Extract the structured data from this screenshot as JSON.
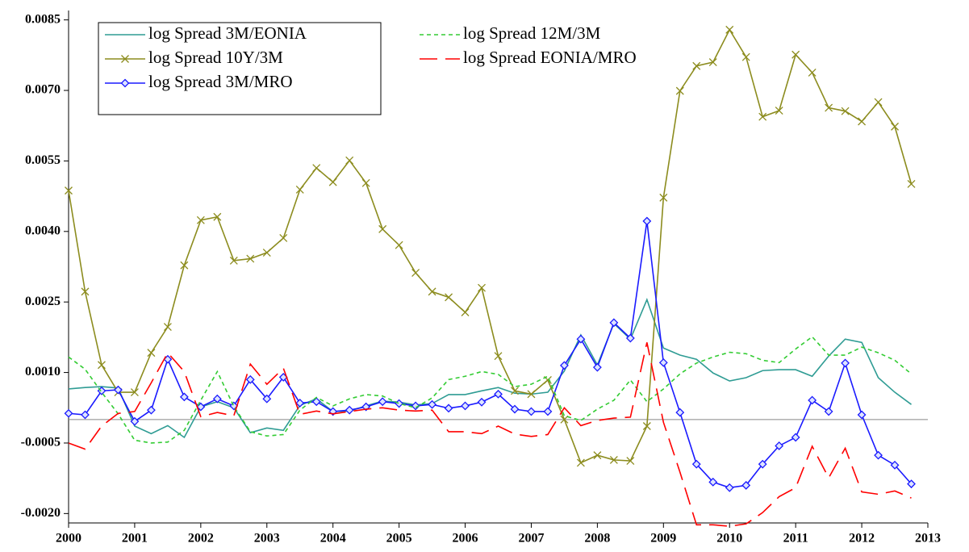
{
  "chart_data": {
    "type": "line",
    "x": [
      2000,
      2000.25,
      2000.5,
      2000.75,
      2001,
      2001.25,
      2001.5,
      2001.75,
      2002,
      2002.25,
      2002.5,
      2002.75,
      2003,
      2003.25,
      2003.5,
      2003.75,
      2004,
      2004.25,
      2004.5,
      2004.75,
      2005,
      2005.25,
      2005.5,
      2005.75,
      2006,
      2006.25,
      2006.5,
      2006.75,
      2007,
      2007.25,
      2007.5,
      2007.75,
      2008,
      2008.25,
      2008.5,
      2008.75,
      2009,
      2009.25,
      2009.5,
      2009.75,
      2010,
      2010.25,
      2010.5,
      2010.75,
      2011,
      2011.25,
      2011.5,
      2011.75,
      2012,
      2012.25,
      2012.5,
      2012.75
    ],
    "series": [
      {
        "name": "log Spread 3M/EONIA",
        "color": "#2f9c94",
        "dash": "solid",
        "marker": "none",
        "values": [
          0.00065,
          0.00068,
          0.0007,
          0.00067,
          -0.00014,
          -0.0003,
          -0.00013,
          -0.00038,
          0.00027,
          0.00038,
          0.00025,
          -0.00028,
          -0.00018,
          -0.00023,
          0.0003,
          0.00044,
          0.00017,
          0.00018,
          0.00029,
          0.00039,
          0.00037,
          0.00031,
          0.00034,
          0.00053,
          0.00053,
          0.00061,
          0.00068,
          0.00056,
          0.00054,
          0.00058,
          0.00103,
          0.0018,
          0.00116,
          0.00204,
          0.00171,
          0.00255,
          0.00152,
          0.00137,
          0.00128,
          0.00099,
          0.00082,
          0.00089,
          0.00104,
          0.00106,
          0.00106,
          0.00092,
          0.00135,
          0.00171,
          0.00164,
          0.00089,
          0.00058,
          0.00032
        ]
      },
      {
        "name": "log Spread 10Y/3M",
        "color": "#8c8c1e",
        "dash": "solid",
        "marker": "x",
        "values": [
          0.00487,
          0.00272,
          0.00116,
          0.00058,
          0.00058,
          0.00142,
          0.00197,
          0.00328,
          0.00424,
          0.00431,
          0.00338,
          0.00342,
          0.00355,
          0.00386,
          0.00489,
          0.00535,
          0.00505,
          0.00551,
          0.00503,
          0.00405,
          0.00371,
          0.00312,
          0.00272,
          0.0026,
          0.00228,
          0.0028,
          0.00135,
          0.00061,
          0.00054,
          0.00084,
          0.0,
          -0.00092,
          -0.00076,
          -0.00086,
          -0.00088,
          -0.00014,
          0.00472,
          0.00699,
          0.00752,
          0.0076,
          0.00829,
          0.00771,
          0.00644,
          0.00657,
          0.00776,
          0.00738,
          0.00663,
          0.00656,
          0.00634,
          0.00675,
          0.00623,
          0.00501
        ]
      },
      {
        "name": "log Spread 3M/MRO",
        "color": "#1a1aff",
        "dash": "solid",
        "marker": "diamond",
        "values": [
          0.00013,
          0.0001,
          0.00061,
          0.00063,
          -4e-05,
          0.0002,
          0.00128,
          0.00048,
          0.00027,
          0.00044,
          0.00029,
          0.00085,
          0.00044,
          0.0009,
          0.00035,
          0.00038,
          0.00017,
          0.0002,
          0.00027,
          0.00038,
          0.00034,
          0.00029,
          0.00032,
          0.00024,
          0.00029,
          0.00037,
          0.00054,
          0.00022,
          0.00017,
          0.00017,
          0.00115,
          0.00171,
          0.00111,
          0.00206,
          0.00173,
          0.00422,
          0.00121,
          0.00015,
          -0.00095,
          -0.00133,
          -0.00145,
          -0.0014,
          -0.00095,
          -0.00056,
          -0.00038,
          0.00041,
          0.00017,
          0.0012,
          0.0001,
          -0.00076,
          -0.00097,
          -0.00137
        ]
      },
      {
        "name": "log Spread 12M/3M",
        "color": "#33cc33",
        "dash": "dotted",
        "marker": "none",
        "values": [
          0.00133,
          0.00107,
          0.00058,
          0.00012,
          -0.00044,
          -0.0005,
          -0.00048,
          -0.00023,
          0.00041,
          0.00102,
          0.00028,
          -0.00026,
          -0.00035,
          -0.00032,
          0.0002,
          0.00047,
          0.00029,
          0.00044,
          0.00053,
          0.0005,
          0.00034,
          0.00025,
          0.00046,
          0.00085,
          0.00092,
          0.00102,
          0.00096,
          0.0007,
          0.00075,
          0.00092,
          8e-05,
          -2e-05,
          0.00022,
          0.00041,
          0.00084,
          0.00038,
          0.00065,
          0.00097,
          0.0012,
          0.00133,
          0.00143,
          0.0014,
          0.00126,
          0.00121,
          0.0015,
          0.00176,
          0.00137,
          0.00137,
          0.00154,
          0.00142,
          0.00126,
          0.00097
        ]
      },
      {
        "name": "log Spread EONIA/MRO",
        "color": "#ff0000",
        "dash": "dashed",
        "marker": "none",
        "values": [
          -0.0005,
          -0.00063,
          -0.00014,
          0.00013,
          0.00017,
          0.00078,
          0.00142,
          0.00102,
          6e-05,
          0.00015,
          8e-05,
          0.00118,
          0.00075,
          0.00109,
          0.00011,
          0.00018,
          0.00012,
          0.00017,
          0.00022,
          0.00025,
          0.0002,
          0.00018,
          0.0002,
          -0.00026,
          -0.00026,
          -0.0003,
          -0.00014,
          -0.00031,
          -0.00036,
          -0.00032,
          0.00025,
          -0.00013,
          -2e-05,
          3e-05,
          5e-05,
          0.00164,
          -6e-05,
          -0.00112,
          -0.00224,
          -0.00224,
          -0.00227,
          -0.00222,
          -0.00198,
          -0.00164,
          -0.00145,
          -0.00057,
          -0.00124,
          -0.00061,
          -0.00154,
          -0.00159,
          -0.00152,
          -0.00167
        ]
      }
    ],
    "xlim": [
      2000,
      2013
    ],
    "xticks": [
      2000,
      2001,
      2002,
      2003,
      2004,
      2005,
      2006,
      2007,
      2008,
      2009,
      2010,
      2011,
      2012,
      2013
    ],
    "ylim": [
      -0.0022,
      0.0087
    ],
    "yticks": [
      {
        "value": 0.0085,
        "label": "0.0085"
      },
      {
        "value": 0.007,
        "label": "0.0070"
      },
      {
        "value": 0.0055,
        "label": "0.0055"
      },
      {
        "value": 0.004,
        "label": "0.0040"
      },
      {
        "value": 0.0025,
        "label": "0.0025"
      },
      {
        "value": 0.001,
        "label": "0.0010"
      },
      {
        "value": -0.0005,
        "label": "-0.0005"
      },
      {
        "value": -0.002,
        "label": "-0.0020"
      }
    ],
    "reference_line": 0,
    "grid": false,
    "legend": "top-left"
  }
}
